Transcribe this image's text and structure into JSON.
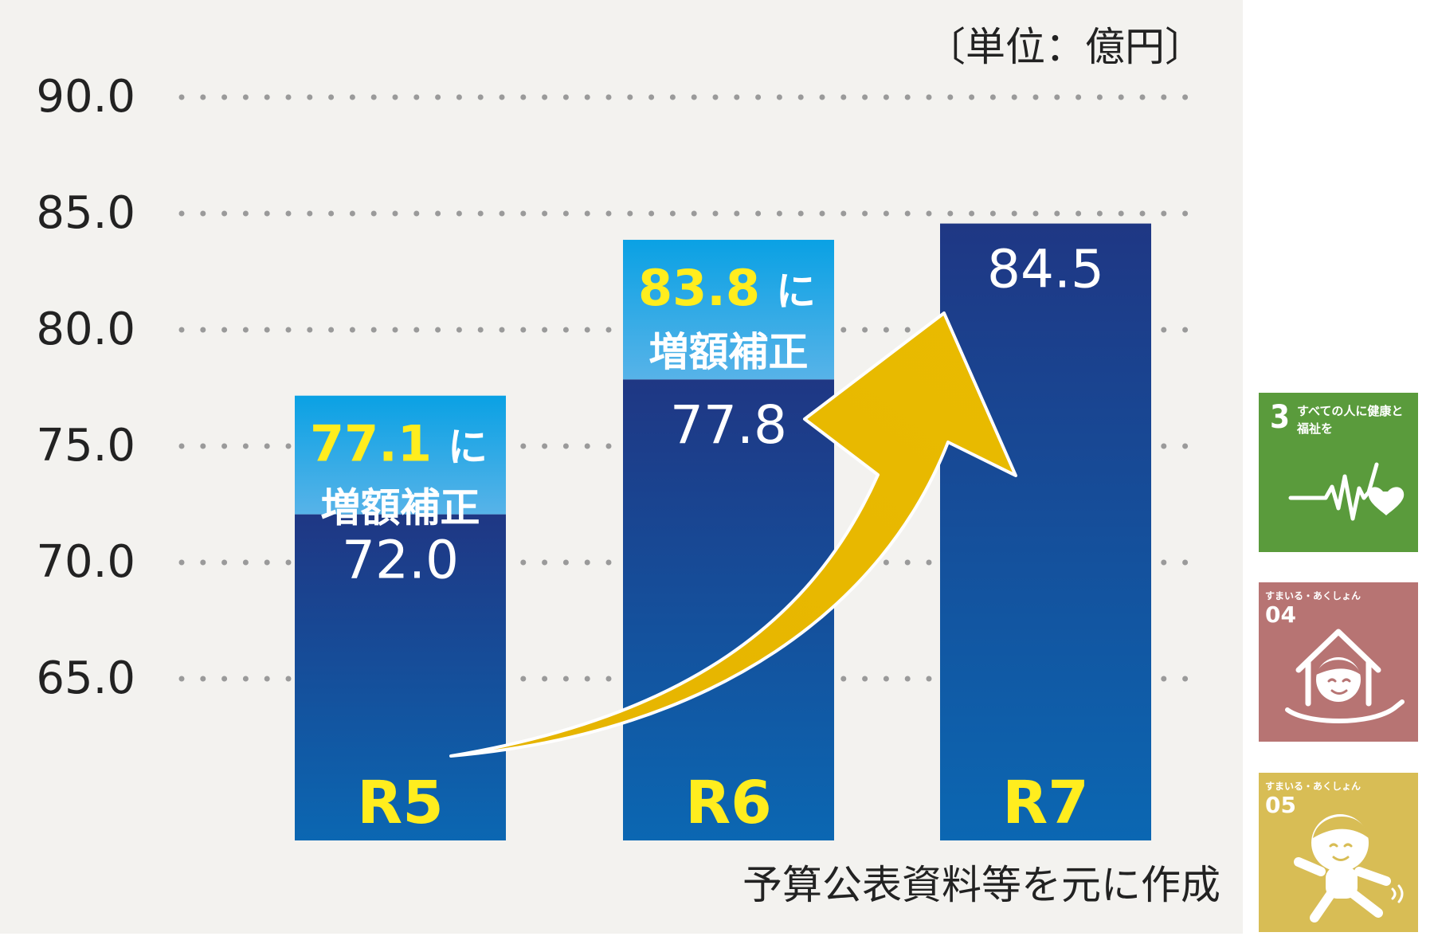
{
  "chart_data": {
    "type": "bar",
    "unit_label": "〔単位：億円〕",
    "ylim": [
      60,
      92
    ],
    "yticks": [
      "90.0",
      "85.0",
      "80.0",
      "75.0",
      "70.0",
      "65.0"
    ],
    "categories": [
      "R5",
      "R6",
      "R7"
    ],
    "series": [
      {
        "values": [
          72.0,
          77.8,
          84.5
        ]
      },
      {
        "values": [
          77.1,
          83.8,
          null
        ]
      }
    ],
    "value_labels": [
      "72.0",
      "77.8",
      "84.5"
    ],
    "supplement_labels": [
      {
        "value": "77.1",
        "suffix": "に",
        "text": "増額補正"
      },
      {
        "value": "83.8",
        "suffix": "に",
        "text": "増額補正"
      }
    ],
    "grid": "dotted horizontal",
    "source": "予算公表資料等を元に作成",
    "colors": {
      "base_bar_top": "#1f3784",
      "base_bar_bottom": "#0b67b2",
      "supplement_top": "#0aa1e4",
      "supplement_bottom": "#57b3e8",
      "category_label": "#ffed1e",
      "supplement_value": "#ffed1e",
      "arrow": "#e6b400"
    }
  },
  "badges": [
    {
      "number": "3",
      "title": "すべての人に健康と福祉を",
      "color": "#5a9b3c",
      "icon": "heartbeat-heart-icon"
    },
    {
      "label": "すまいる・あくしょん",
      "number": "04",
      "color": "#b77473",
      "icon": "house-hand-face-icon"
    },
    {
      "label": "すまいる・あくしょん",
      "number": "05",
      "color": "#d8bd55",
      "icon": "running-character-icon"
    }
  ]
}
